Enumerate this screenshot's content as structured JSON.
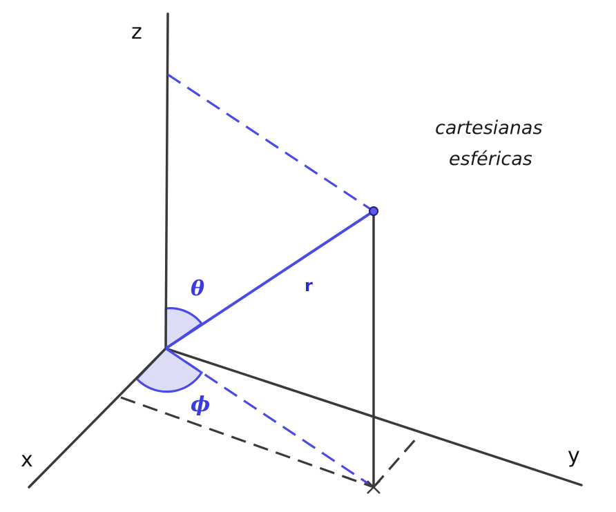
{
  "axes": {
    "x_label": "x",
    "y_label": "y",
    "z_label": "z"
  },
  "angles": {
    "polar_label": "θ",
    "azimuth_label": "ϕ"
  },
  "radius_label": "r",
  "legend": {
    "line1": "cartesianas",
    "line2": "esféricas"
  },
  "colors": {
    "axis": "#3a3a3a",
    "accent_blue": "#4a4ae8",
    "wedge_fill": "#dcdcf6"
  }
}
